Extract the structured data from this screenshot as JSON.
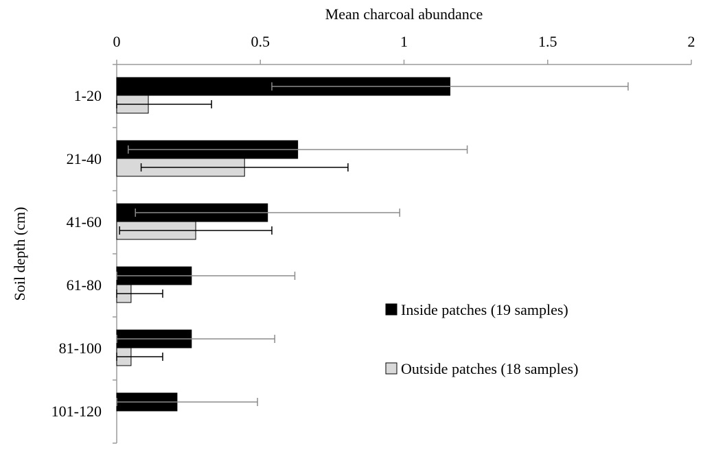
{
  "chart_data": {
    "type": "bar",
    "orientation": "horizontal",
    "title": "",
    "xlabel": "Mean charcoal abundance",
    "ylabel": "Soil depth (cm)",
    "xlim": [
      0,
      2
    ],
    "x_ticks": [
      "0",
      "0.5",
      "1",
      "1.5",
      "2"
    ],
    "x_axis_position": "top",
    "categories": [
      "1-20",
      "21-40",
      "41-60",
      "61-80",
      "81-100",
      "101-120"
    ],
    "series": [
      {
        "name": "Inside patches (19 samples)",
        "color": "#000000",
        "values": [
          1.16,
          0.63,
          0.525,
          0.26,
          0.26,
          0.21
        ],
        "error_plus": [
          0.62,
          0.59,
          0.46,
          0.36,
          0.29,
          0.28
        ],
        "error_minus": [
          0.62,
          0.59,
          0.46,
          0.36,
          0.29,
          0.28
        ]
      },
      {
        "name": "Outside patches (18 samples)",
        "color": "#d9d9d9",
        "values": [
          0.11,
          0.445,
          0.275,
          0.05,
          0.05,
          null
        ],
        "error_plus": [
          0.22,
          0.36,
          0.265,
          0.11,
          0.11,
          null
        ],
        "error_minus": [
          0.22,
          0.36,
          0.265,
          0.11,
          0.11,
          null
        ]
      }
    ],
    "grid": false,
    "legend_position": "right"
  }
}
